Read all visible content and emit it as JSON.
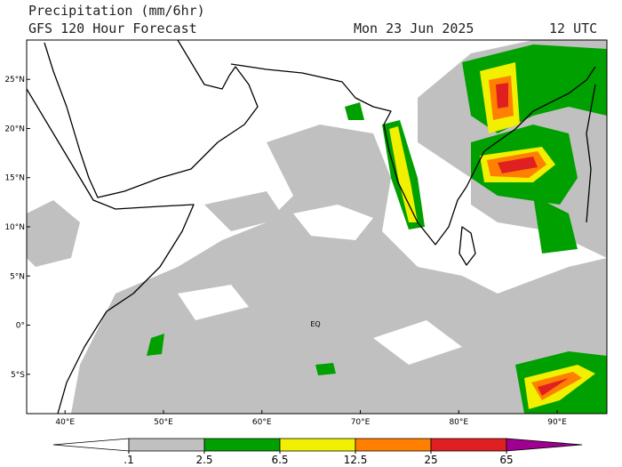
{
  "header": {
    "title": "Precipitation (mm/6hr)",
    "subtitle": "GFS 120 Hour Forecast",
    "date": "Mon 23 Jun 2025",
    "time": "12 UTC"
  },
  "map": {
    "lon_range": [
      36.1,
      95.05
    ],
    "lat_range": [
      -9,
      29
    ],
    "lon_ticks": [
      {
        "value": 40,
        "label": "40°E"
      },
      {
        "value": 50,
        "label": "50°E"
      },
      {
        "value": 60,
        "label": "60°E"
      },
      {
        "value": 70,
        "label": "70°E"
      },
      {
        "value": 80,
        "label": "80°E"
      },
      {
        "value": 90,
        "label": "90°E"
      }
    ],
    "lat_ticks": [
      {
        "value": 25,
        "label": "25°N"
      },
      {
        "value": 20,
        "label": "20°N"
      },
      {
        "value": 15,
        "label": "15°N"
      },
      {
        "value": 10,
        "label": "10°N"
      },
      {
        "value": 5,
        "label": "5°N"
      },
      {
        "value": 0,
        "label": "0°"
      },
      {
        "value": -5,
        "label": "5°S"
      }
    ],
    "equator_label": "EQ"
  },
  "colorbar": {
    "levels": [
      {
        "value": 0.1,
        "label": ".1"
      },
      2.5,
      6.5,
      12.5,
      25,
      65
    ],
    "colors": [
      "#ffffff",
      "#c0c0c0",
      "#00a000",
      "#f0f000",
      "#ff8000",
      "#e02020",
      "#a00090"
    ]
  }
}
